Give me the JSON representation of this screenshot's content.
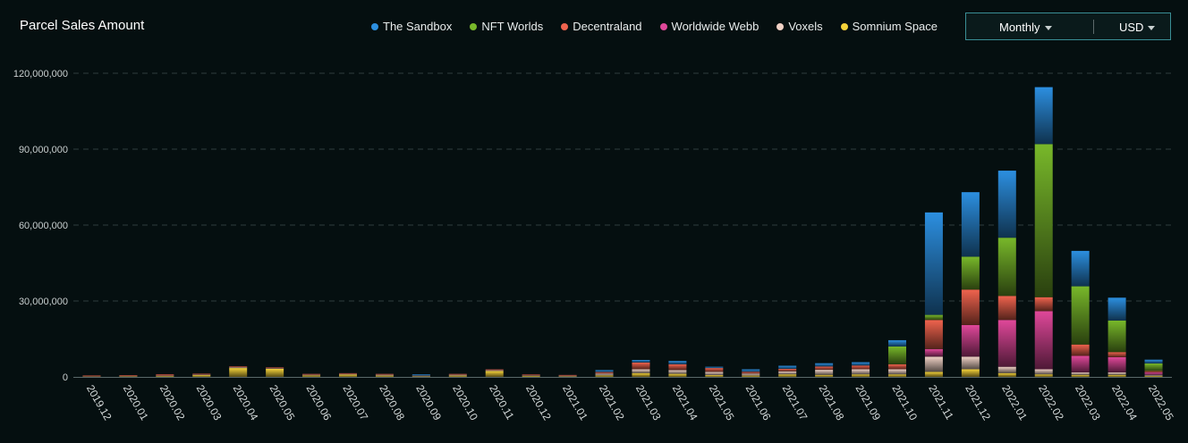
{
  "title": "Parcel Sales Amount",
  "controls": {
    "period": "Monthly",
    "currency": "USD"
  },
  "chart_data": {
    "type": "bar",
    "stacked": true,
    "title": "Parcel Sales Amount",
    "xlabel": "",
    "ylabel": "",
    "ylim": [
      0,
      120000000
    ],
    "yticks": [
      0,
      30000000,
      60000000,
      90000000,
      120000000
    ],
    "ytick_labels": [
      "0",
      "30,000,000",
      "60,000,000",
      "90,000,000",
      "120,000,000"
    ],
    "grid": true,
    "legend_position": "top",
    "categories": [
      "2019.12",
      "2020.01",
      "2020.02",
      "2020.03",
      "2020.04",
      "2020.05",
      "2020.06",
      "2020.07",
      "2020.08",
      "2020.09",
      "2020.10",
      "2020.11",
      "2020.12",
      "2021.01",
      "2021.02",
      "2021.03",
      "2021.04",
      "2021.05",
      "2021.06",
      "2021.07",
      "2021.08",
      "2021.09",
      "2021.10",
      "2021.11",
      "2021.12",
      "2022.01",
      "2022.02",
      "2022.03",
      "2022.04",
      "2022.05"
    ],
    "series": [
      {
        "name": "Somnium Space",
        "color": "#f5d33a",
        "values": [
          100000,
          200000,
          300000,
          700000,
          3500000,
          3200000,
          600000,
          900000,
          500000,
          200000,
          500000,
          2300000,
          400000,
          200000,
          600000,
          1500000,
          1200000,
          700000,
          500000,
          1000000,
          800000,
          1000000,
          1000000,
          2000000,
          3000000,
          1500000,
          1000000,
          800000,
          800000,
          400000
        ]
      },
      {
        "name": "Voxels",
        "color": "#f0d2c6",
        "values": [
          100000,
          100000,
          200000,
          200000,
          300000,
          200000,
          200000,
          200000,
          300000,
          200000,
          300000,
          300000,
          200000,
          200000,
          700000,
          1500000,
          1500000,
          1300000,
          800000,
          1200000,
          2000000,
          2000000,
          2000000,
          6000000,
          5000000,
          2500000,
          2000000,
          1000000,
          1000000,
          400000
        ]
      },
      {
        "name": "Worldwide Webb",
        "color": "#e0489a",
        "values": [
          0,
          0,
          0,
          0,
          0,
          0,
          0,
          0,
          0,
          0,
          0,
          0,
          0,
          0,
          0,
          0,
          0,
          0,
          0,
          0,
          0,
          0,
          0,
          3000000,
          12500000,
          18500000,
          23000000,
          6500000,
          6000000,
          1000000
        ]
      },
      {
        "name": "Decentraland",
        "color": "#f0634e",
        "values": [
          200000,
          200000,
          500000,
          200000,
          100000,
          100000,
          100000,
          100000,
          100000,
          100000,
          200000,
          200000,
          200000,
          200000,
          600000,
          2700000,
          2300000,
          1500000,
          700000,
          1000000,
          1300000,
          1500000,
          2000000,
          11500000,
          14000000,
          9500000,
          5500000,
          4500000,
          2000000,
          500000
        ]
      },
      {
        "name": "NFT Worlds",
        "color": "#78b82a",
        "values": [
          0,
          0,
          0,
          0,
          0,
          0,
          0,
          0,
          0,
          0,
          0,
          0,
          0,
          0,
          0,
          0,
          0,
          0,
          0,
          0,
          0,
          0,
          7000000,
          2000000,
          13000000,
          23000000,
          60500000,
          23000000,
          12500000,
          3000000
        ]
      },
      {
        "name": "The Sandbox",
        "color": "#2c8fe0",
        "values": [
          0,
          0,
          0,
          0,
          0,
          0,
          0,
          0,
          0,
          500000,
          0,
          0,
          0,
          0,
          800000,
          1000000,
          1300000,
          500000,
          1000000,
          1200000,
          1300000,
          1300000,
          2500000,
          40500000,
          25500000,
          26500000,
          22500000,
          14000000,
          9000000,
          1500000
        ]
      }
    ]
  },
  "legend": [
    {
      "name": "The Sandbox",
      "color": "#2c8fe0"
    },
    {
      "name": "NFT Worlds",
      "color": "#78b82a"
    },
    {
      "name": "Decentraland",
      "color": "#f0634e"
    },
    {
      "name": "Worldwide Webb",
      "color": "#e0489a"
    },
    {
      "name": "Voxels",
      "color": "#f0d2c6"
    },
    {
      "name": "Somnium Space",
      "color": "#f5d33a"
    }
  ]
}
